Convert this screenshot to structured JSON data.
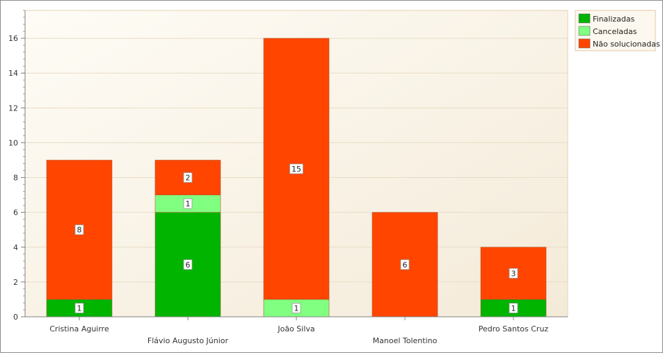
{
  "chart_data": {
    "type": "bar",
    "stacked": true,
    "categories": [
      "Cristina Aguirre",
      "Flávio Augusto Júnior",
      "João Silva",
      "Manoel Tolentino",
      "Pedro Santos Cruz"
    ],
    "series": [
      {
        "name": "Finalizadas",
        "color": "#00b400",
        "values": [
          1,
          6,
          0,
          0,
          1
        ]
      },
      {
        "name": "Canceladas",
        "color": "#80ff80",
        "values": [
          0,
          1,
          1,
          0,
          0
        ]
      },
      {
        "name": "Não solucionadas",
        "color": "#ff4500",
        "values": [
          8,
          2,
          15,
          6,
          3
        ]
      }
    ],
    "ylim": [
      0,
      17.6
    ],
    "yticks": [
      0,
      2,
      4,
      6,
      8,
      10,
      12,
      14,
      16
    ],
    "grid": true,
    "legend": "top-right",
    "title": "",
    "xlabel": "",
    "ylabel": ""
  }
}
